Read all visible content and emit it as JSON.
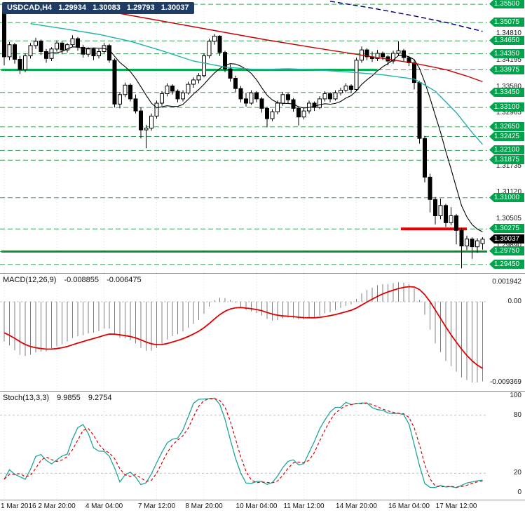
{
  "window": {
    "symbol_tag": {
      "symbol": "USDCAD,H4",
      "open": "1.29934",
      "high": "1.30083",
      "low": "1.29793",
      "close": "1.30037"
    }
  },
  "chart_data": {
    "type": "candlestick",
    "main": {
      "symbol": "USDCAD",
      "timeframe": "H4",
      "price_top": 1.356,
      "price_bottom": 1.2925,
      "colors": {
        "badge_green": "#00A24B",
        "level_dash": "#33A153",
        "grid": "#E0E0E0"
      },
      "axis_ticks": [
        {
          "text": "1.34810",
          "price": 1.3481
        },
        {
          "text": "1.34195",
          "price": 1.34195
        },
        {
          "text": "1.33580",
          "price": 1.3358
        },
        {
          "text": "1.32965",
          "price": 1.32965
        },
        {
          "text": "1.32350",
          "price": 1.3235
        },
        {
          "text": "1.31735",
          "price": 1.31735
        },
        {
          "text": "1.31120",
          "price": 1.3112
        },
        {
          "text": "1.30505",
          "price": 1.30505
        },
        {
          "text": "1.29890",
          "price": 1.2989
        }
      ],
      "levels": [
        {
          "text": "1.35500",
          "price": 1.355
        },
        {
          "text": "1.35075",
          "price": 1.35075
        },
        {
          "text": "1.34650",
          "price": 1.3465
        },
        {
          "text": "1.34350",
          "price": 1.3435
        },
        {
          "text": "1.33975",
          "price": 1.33975
        },
        {
          "text": "1.33450",
          "price": 1.3345
        },
        {
          "text": "1.33100",
          "price": 1.331
        },
        {
          "text": "1.32650",
          "price": 1.3265
        },
        {
          "text": "1.32425",
          "price": 1.32425
        },
        {
          "text": "1.32100",
          "price": 1.321
        },
        {
          "text": "1.31875",
          "price": 1.31875
        },
        {
          "text": "1.31000",
          "price": 1.31
        },
        {
          "text": "1.30275",
          "price": 1.30275
        },
        {
          "text": "1.29750",
          "price": 1.2975
        },
        {
          "text": "1.29450",
          "price": 1.2945
        }
      ],
      "current": {
        "text": "1.30037",
        "price": 1.30037
      },
      "thick_lines": [
        {
          "name": "resistance-level-line",
          "price": 1.33975,
          "from_bar": 0,
          "to_bar": 71,
          "color": "#00B050",
          "width": 3
        },
        {
          "name": "support-level-line",
          "price": 1.2975,
          "from_bar": 0,
          "to_bar": 93,
          "color": "#0E8C3A",
          "width": 3
        },
        {
          "name": "red-target-line",
          "price": 1.30275,
          "from_bar": 76,
          "to_bar": 88,
          "color": "#E60000",
          "width": 4
        }
      ],
      "ma_lines": [
        {
          "name": "ma-black",
          "compute": "sma",
          "period": 9,
          "color": "#000000",
          "width": 1.1
        },
        {
          "name": "ma-teal",
          "color": "#20B2AA",
          "width": 1.4,
          "points": [
            [
              5,
              1.3505
            ],
            [
              12,
              1.3492
            ],
            [
              18,
              1.348
            ],
            [
              24,
              1.3464
            ],
            [
              30,
              1.3442
            ],
            [
              36,
              1.3418
            ],
            [
              42,
              1.3404
            ],
            [
              48,
              1.3398
            ],
            [
              54,
              1.34
            ],
            [
              60,
              1.3397
            ],
            [
              66,
              1.3392
            ],
            [
              72,
              1.3386
            ],
            [
              78,
              1.3376
            ],
            [
              82,
              1.3348
            ],
            [
              86,
              1.3298
            ],
            [
              89,
              1.3252
            ],
            [
              91,
              1.3224
            ]
          ]
        },
        {
          "name": "ma-red",
          "color": "#C80000",
          "width": 1.4,
          "points": [
            [
              11,
              1.3552
            ],
            [
              20,
              1.3533
            ],
            [
              30,
              1.3511
            ],
            [
              40,
              1.3489
            ],
            [
              50,
              1.3467
            ],
            [
              60,
              1.3447
            ],
            [
              70,
              1.3428
            ],
            [
              78,
              1.3413
            ],
            [
              84,
              1.3398
            ],
            [
              88,
              1.3383
            ],
            [
              91,
              1.337
            ]
          ]
        },
        {
          "name": "ma-blue-dashed",
          "color": "#00007F",
          "width": 1.5,
          "dash": "7 4",
          "points": [
            [
              62,
              1.3557
            ],
            [
              70,
              1.3541
            ],
            [
              78,
              1.3523
            ],
            [
              84,
              1.3508
            ],
            [
              88,
              1.3496
            ],
            [
              91,
              1.3487
            ]
          ]
        }
      ],
      "time_labels": [
        {
          "text": "1 Mar 2016",
          "bar": 0
        },
        {
          "text": "2 Mar 20:00",
          "bar": 10
        },
        {
          "text": "4 Mar 04:00",
          "bar": 19
        },
        {
          "text": "7 Mar 12:00",
          "bar": 29
        },
        {
          "text": "8 Mar 20:00",
          "bar": 38
        },
        {
          "text": "10 Mar 04:00",
          "bar": 48
        },
        {
          "text": "11 Mar 12:00",
          "bar": 57
        },
        {
          "text": "14 Mar 20:00",
          "bar": 67
        },
        {
          "text": "16 Mar 04:00",
          "bar": 77
        },
        {
          "text": "17 Mar 12:00",
          "bar": 86
        }
      ],
      "bars_ohlc": [
        [
          1.3545,
          1.3552,
          1.3408,
          1.3428
        ],
        [
          1.3428,
          1.3462,
          1.342,
          1.3456
        ],
        [
          1.3456,
          1.346,
          1.3412,
          1.3422
        ],
        [
          1.3422,
          1.343,
          1.3388,
          1.3398
        ],
        [
          1.3398,
          1.3436,
          1.3392,
          1.343
        ],
        [
          1.343,
          1.346,
          1.3424,
          1.3454
        ],
        [
          1.3454,
          1.3472,
          1.3446,
          1.3464
        ],
        [
          1.3464,
          1.3468,
          1.3432,
          1.344
        ],
        [
          1.344,
          1.3446,
          1.3414,
          1.3424
        ],
        [
          1.3424,
          1.345,
          1.3418,
          1.3446
        ],
        [
          1.3446,
          1.3466,
          1.344,
          1.346
        ],
        [
          1.346,
          1.3464,
          1.3434,
          1.3444
        ],
        [
          1.3444,
          1.346,
          1.3438,
          1.3456
        ],
        [
          1.3456,
          1.3478,
          1.345,
          1.347
        ],
        [
          1.347,
          1.3474,
          1.3442,
          1.345
        ],
        [
          1.345,
          1.3456,
          1.3426,
          1.3434
        ],
        [
          1.3434,
          1.345,
          1.3428,
          1.3446
        ],
        [
          1.3446,
          1.3448,
          1.342,
          1.343
        ],
        [
          1.343,
          1.3446,
          1.3424,
          1.344
        ],
        [
          1.344,
          1.346,
          1.3436,
          1.3454
        ],
        [
          1.3454,
          1.3458,
          1.3414,
          1.342
        ],
        [
          1.342,
          1.3424,
          1.331,
          1.3318
        ],
        [
          1.3318,
          1.3346,
          1.3308,
          1.334
        ],
        [
          1.334,
          1.3368,
          1.3334,
          1.3362
        ],
        [
          1.3362,
          1.3366,
          1.3324,
          1.333
        ],
        [
          1.333,
          1.334,
          1.3296,
          1.3302
        ],
        [
          1.3302,
          1.331,
          1.3238,
          1.3258
        ],
        [
          1.3258,
          1.327,
          1.3215,
          1.3262
        ],
        [
          1.3262,
          1.3296,
          1.3256,
          1.329
        ],
        [
          1.329,
          1.3326,
          1.3284,
          1.332
        ],
        [
          1.332,
          1.3348,
          1.3314,
          1.3342
        ],
        [
          1.3342,
          1.3366,
          1.3336,
          1.336
        ],
        [
          1.336,
          1.3364,
          1.334,
          1.3348
        ],
        [
          1.3348,
          1.3352,
          1.3322,
          1.333
        ],
        [
          1.333,
          1.335,
          1.3324,
          1.3344
        ],
        [
          1.3344,
          1.337,
          1.334,
          1.3364
        ],
        [
          1.3364,
          1.338,
          1.3356,
          1.3374
        ],
        [
          1.3374,
          1.339,
          1.3366,
          1.3384
        ],
        [
          1.3384,
          1.3436,
          1.338,
          1.343
        ],
        [
          1.343,
          1.347,
          1.3424,
          1.3464
        ],
        [
          1.3464,
          1.3481,
          1.3456,
          1.3476
        ],
        [
          1.3476,
          1.3478,
          1.343,
          1.3438
        ],
        [
          1.3438,
          1.3442,
          1.3392,
          1.34
        ],
        [
          1.34,
          1.341,
          1.337,
          1.3378
        ],
        [
          1.3378,
          1.3384,
          1.3346,
          1.3354
        ],
        [
          1.3354,
          1.336,
          1.3322,
          1.333
        ],
        [
          1.333,
          1.3344,
          1.3312,
          1.332
        ],
        [
          1.332,
          1.335,
          1.3316,
          1.3344
        ],
        [
          1.3344,
          1.3348,
          1.3322,
          1.333
        ],
        [
          1.333,
          1.3334,
          1.3298,
          1.3308
        ],
        [
          1.3308,
          1.3312,
          1.3264,
          1.3284
        ],
        [
          1.3284,
          1.3306,
          1.3278,
          1.33
        ],
        [
          1.33,
          1.3326,
          1.3294,
          1.332
        ],
        [
          1.332,
          1.3346,
          1.3314,
          1.334
        ],
        [
          1.334,
          1.3344,
          1.332,
          1.3328
        ],
        [
          1.3328,
          1.3332,
          1.33,
          1.3308
        ],
        [
          1.3308,
          1.3312,
          1.3268,
          1.3288
        ],
        [
          1.3288,
          1.3308,
          1.3282,
          1.3302
        ],
        [
          1.3302,
          1.3326,
          1.3296,
          1.332
        ],
        [
          1.332,
          1.3324,
          1.3302,
          1.331
        ],
        [
          1.331,
          1.3336,
          1.3306,
          1.333
        ],
        [
          1.333,
          1.3348,
          1.3324,
          1.3342
        ],
        [
          1.3342,
          1.3346,
          1.3322,
          1.333
        ],
        [
          1.333,
          1.335,
          1.3326,
          1.3344
        ],
        [
          1.3344,
          1.3356,
          1.3338,
          1.335
        ],
        [
          1.335,
          1.3366,
          1.3344,
          1.336
        ],
        [
          1.336,
          1.3364,
          1.3344,
          1.3352
        ],
        [
          1.3352,
          1.3426,
          1.3348,
          1.342
        ],
        [
          1.342,
          1.3452,
          1.3414,
          1.3444
        ],
        [
          1.3444,
          1.3448,
          1.342,
          1.3428
        ],
        [
          1.3428,
          1.344,
          1.3416,
          1.3424
        ],
        [
          1.3424,
          1.3444,
          1.3418,
          1.3436
        ],
        [
          1.3436,
          1.344,
          1.342,
          1.3428
        ],
        [
          1.3428,
          1.3432,
          1.3408,
          1.3418
        ],
        [
          1.3418,
          1.3442,
          1.3412,
          1.3436
        ],
        [
          1.3436,
          1.3464,
          1.343,
          1.3442
        ],
        [
          1.3442,
          1.3446,
          1.3418,
          1.3426
        ],
        [
          1.3426,
          1.343,
          1.3406,
          1.3414
        ],
        [
          1.3414,
          1.342,
          1.3352,
          1.3368
        ],
        [
          1.3368,
          1.3372,
          1.3226,
          1.3238
        ],
        [
          1.3238,
          1.3244,
          1.3136,
          1.3148
        ],
        [
          1.3148,
          1.3156,
          1.3066,
          1.3096
        ],
        [
          1.3096,
          1.3102,
          1.3038,
          1.3058
        ],
        [
          1.3058,
          1.3098,
          1.305,
          1.3082
        ],
        [
          1.3082,
          1.3086,
          1.3032,
          1.3042
        ],
        [
          1.3042,
          1.3078,
          1.3036,
          1.3058
        ],
        [
          1.3058,
          1.3062,
          1.2992,
          1.3024
        ],
        [
          1.3024,
          1.303,
          1.2936,
          1.2988
        ],
        [
          1.2988,
          1.3012,
          1.2978,
          1.3004
        ],
        [
          1.3004,
          1.3008,
          1.2958,
          1.2986
        ],
        [
          1.2986,
          1.3006,
          1.2972,
          1.3
        ],
        [
          1.29934,
          1.30083,
          1.29793,
          1.30037
        ]
      ]
    },
    "macd": {
      "label": "MACD(12,26,9)",
      "params": [
        12,
        26,
        9
      ],
      "values": [
        "-0.008855",
        "-0.006475"
      ],
      "axis": {
        "top": "0.001942",
        "zero": "0.00",
        "bottom": "-0.009369"
      },
      "colors": {
        "histogram": "#7F7F7F",
        "signal": "#E00000",
        "zero_line": "#C9C9C9"
      }
    },
    "stoch": {
      "label": "Stoch(13,3,3)",
      "params": [
        13,
        3,
        3
      ],
      "values": [
        "9.9855",
        "9.2754"
      ],
      "axis": [
        {
          "text": "100",
          "value": 100
        },
        {
          "text": "80",
          "value": 80
        },
        {
          "text": "20",
          "value": 20
        },
        {
          "text": "0",
          "value": 0
        }
      ],
      "levels": [
        80,
        20
      ],
      "colors": {
        "main": "#1FA49B",
        "signal": "#E00000",
        "level_line": "#C0C0C0"
      }
    }
  }
}
